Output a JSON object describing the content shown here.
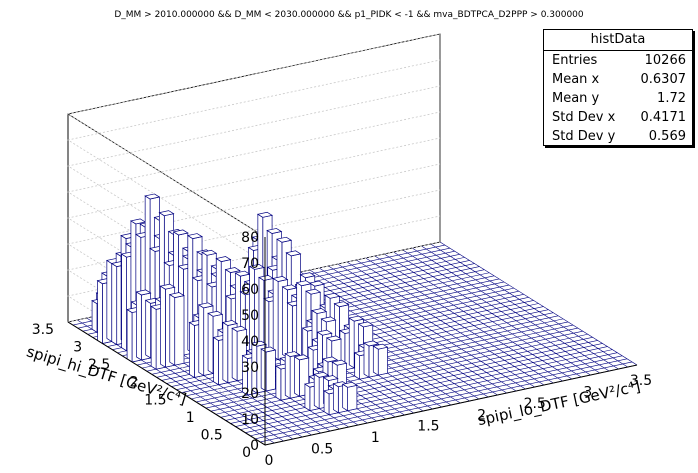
{
  "title": "D_MM > 2010.000000 && D_MM < 2030.000000 && p1_PIDK < -1 && mva_BDTPCA_D2PPP > 0.300000",
  "stats": {
    "name": "histData",
    "rows": [
      {
        "label": "Entries",
        "value": "10266"
      },
      {
        "label": "Mean x",
        "value": "0.6307"
      },
      {
        "label": "Mean y",
        "value": "1.72"
      },
      {
        "label": "Std Dev x",
        "value": "0.4171"
      },
      {
        "label": "Std Dev y",
        "value": "0.569"
      }
    ]
  },
  "colors": {
    "bar_edge": "#000080",
    "bar_top": "#ffffff",
    "grid": "#c8c8c8",
    "axis": "#000000"
  },
  "chart_data": {
    "type": "lego3d",
    "x_axis": {
      "label": "spipi_lo_DTF [GeV²/c⁴]",
      "range": [
        0,
        3.5
      ],
      "ticks": [
        "0",
        "0.5",
        "1",
        "1.5",
        "2",
        "2.5",
        "3",
        "3.5"
      ]
    },
    "y_axis": {
      "label": "spipi_hi_DTF [GeV²/c⁴]",
      "range": [
        0,
        3.5
      ],
      "ticks": [
        "0",
        "0.5",
        "1",
        "1.5",
        "2",
        "2.5",
        "3",
        "3.5"
      ]
    },
    "z_axis": {
      "range": [
        0,
        80
      ],
      "ticks": [
        "0",
        "10",
        "20",
        "30",
        "40",
        "50",
        "60",
        "70",
        "80"
      ]
    },
    "bins": 40,
    "grid": true,
    "nonzero_region": "Dalitz-like band, x 0–1.6, y 0.3–3.2; peaks ~55–60 near x≈0.3,y≈2.6 and ~50 near x≈1.2,y≈2.2",
    "sampled_bins": [
      {
        "x": 0.3,
        "y": 2.6,
        "z": 58
      },
      {
        "x": 0.35,
        "y": 2.5,
        "z": 52
      },
      {
        "x": 0.25,
        "y": 2.7,
        "z": 48
      },
      {
        "x": 0.45,
        "y": 2.4,
        "z": 45
      },
      {
        "x": 0.2,
        "y": 2.8,
        "z": 40
      },
      {
        "x": 0.55,
        "y": 2.3,
        "z": 44
      },
      {
        "x": 0.65,
        "y": 2.2,
        "z": 38
      },
      {
        "x": 0.15,
        "y": 2.9,
        "z": 30
      },
      {
        "x": 0.75,
        "y": 2.1,
        "z": 36
      },
      {
        "x": 0.85,
        "y": 2.0,
        "z": 32
      },
      {
        "x": 0.95,
        "y": 1.9,
        "z": 35
      },
      {
        "x": 1.05,
        "y": 1.8,
        "z": 30
      },
      {
        "x": 1.15,
        "y": 2.2,
        "z": 48
      },
      {
        "x": 1.25,
        "y": 2.05,
        "z": 40
      },
      {
        "x": 1.3,
        "y": 1.7,
        "z": 28
      },
      {
        "x": 1.4,
        "y": 1.5,
        "z": 24
      },
      {
        "x": 1.5,
        "y": 1.3,
        "z": 18
      },
      {
        "x": 0.4,
        "y": 1.8,
        "z": 26
      },
      {
        "x": 0.5,
        "y": 1.5,
        "z": 22
      },
      {
        "x": 0.6,
        "y": 1.2,
        "z": 18
      },
      {
        "x": 0.7,
        "y": 0.9,
        "z": 16
      },
      {
        "x": 0.8,
        "y": 0.6,
        "z": 12
      },
      {
        "x": 0.9,
        "y": 0.4,
        "z": 10
      },
      {
        "x": 1.0,
        "y": 0.7,
        "z": 14
      },
      {
        "x": 1.1,
        "y": 1.0,
        "z": 20
      },
      {
        "x": 1.2,
        "y": 1.3,
        "z": 24
      },
      {
        "x": 0.25,
        "y": 2.1,
        "z": 30
      },
      {
        "x": 0.3,
        "y": 3.0,
        "z": 22
      },
      {
        "x": 0.2,
        "y": 3.2,
        "z": 15
      },
      {
        "x": 0.1,
        "y": 2.4,
        "z": 25
      },
      {
        "x": 1.35,
        "y": 2.4,
        "z": 34
      },
      {
        "x": 1.45,
        "y": 2.0,
        "z": 26
      },
      {
        "x": 1.55,
        "y": 1.0,
        "z": 12
      }
    ]
  }
}
